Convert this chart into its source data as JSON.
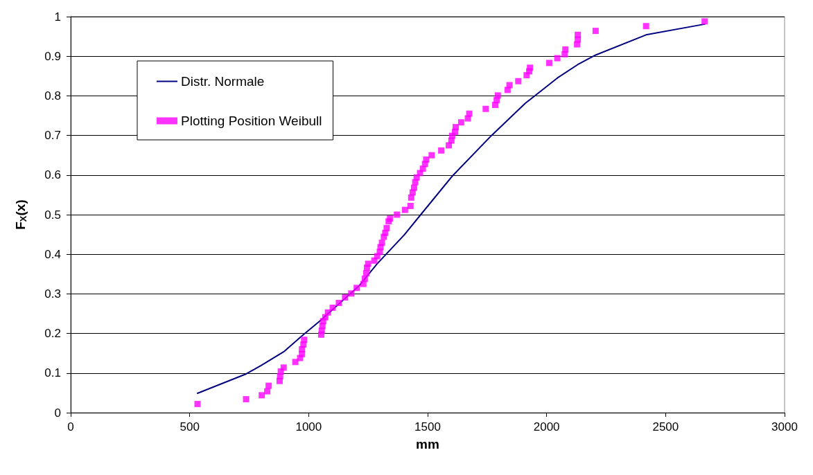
{
  "chart_data": {
    "type": "scatter",
    "xlabel": "mm",
    "ylabel": "F$_{X}$(x)",
    "xlim": [
      0,
      3000
    ],
    "xticks": [
      0,
      500,
      1000,
      1500,
      2000,
      2500,
      3000
    ],
    "ylim": [
      0,
      1
    ],
    "yticks": [
      0,
      0.1,
      0.2,
      0.3,
      0.4,
      0.5,
      0.6,
      0.7,
      0.8,
      0.9,
      1
    ],
    "grid": "y",
    "legend": "top left",
    "series": [
      {
        "name": "Distr. Normale",
        "type": "line",
        "color": "#000080",
        "marker": "none",
        "line_style": "solid",
        "x": [
          533,
          734,
          800,
          898,
          972,
          1050,
          1213,
          1288,
          1402,
          1471,
          1603,
          1767,
          1910,
          2045,
          2131,
          2206,
          2418,
          2664
        ],
        "values": [
          0.049,
          0.097,
          0.119,
          0.155,
          0.194,
          0.233,
          0.321,
          0.376,
          0.449,
          0.5,
          0.597,
          0.699,
          0.781,
          0.845,
          0.879,
          0.903,
          0.954,
          0.981
        ]
      },
      {
        "name": "Plotting Position Weibull",
        "color": "#ff00ff",
        "marker": "square",
        "x": [
          533,
          737,
          803,
          826,
          832,
          878,
          880,
          883,
          895,
          944,
          964,
          972,
          972,
          978,
          981,
          1053,
          1055,
          1058,
          1061,
          1070,
          1081,
          1101,
          1127,
          1153,
          1179,
          1202,
          1230,
          1236,
          1242,
          1245,
          1250,
          1276,
          1288,
          1299,
          1302,
          1308,
          1316,
          1322,
          1328,
          1336,
          1342,
          1371,
          1405,
          1428,
          1431,
          1437,
          1443,
          1448,
          1454,
          1468,
          1480,
          1489,
          1494,
          1517,
          1557,
          1589,
          1600,
          1603,
          1615,
          1618,
          1641,
          1669,
          1675,
          1744,
          1784,
          1790,
          1795,
          1836,
          1844,
          1881,
          1916,
          1927,
          1930,
          2011,
          2045,
          2076,
          2079,
          2128,
          2131,
          2131,
          2206,
          2418,
          2664
        ],
        "values": [
          0.022,
          0.034,
          0.044,
          0.054,
          0.068,
          0.08,
          0.092,
          0.104,
          0.114,
          0.128,
          0.138,
          0.148,
          0.16,
          0.172,
          0.184,
          0.197,
          0.207,
          0.219,
          0.231,
          0.241,
          0.253,
          0.265,
          0.277,
          0.291,
          0.301,
          0.315,
          0.325,
          0.338,
          0.352,
          0.366,
          0.376,
          0.384,
          0.395,
          0.406,
          0.418,
          0.429,
          0.444,
          0.454,
          0.466,
          0.483,
          0.49,
          0.5,
          0.512,
          0.522,
          0.543,
          0.556,
          0.568,
          0.582,
          0.594,
          0.605,
          0.616,
          0.628,
          0.639,
          0.65,
          0.662,
          0.675,
          0.687,
          0.699,
          0.709,
          0.721,
          0.733,
          0.743,
          0.755,
          0.767,
          0.777,
          0.789,
          0.801,
          0.815,
          0.827,
          0.837,
          0.852,
          0.862,
          0.871,
          0.883,
          0.895,
          0.905,
          0.917,
          0.93,
          0.942,
          0.954,
          0.964,
          0.976,
          0.988
        ]
      }
    ]
  }
}
